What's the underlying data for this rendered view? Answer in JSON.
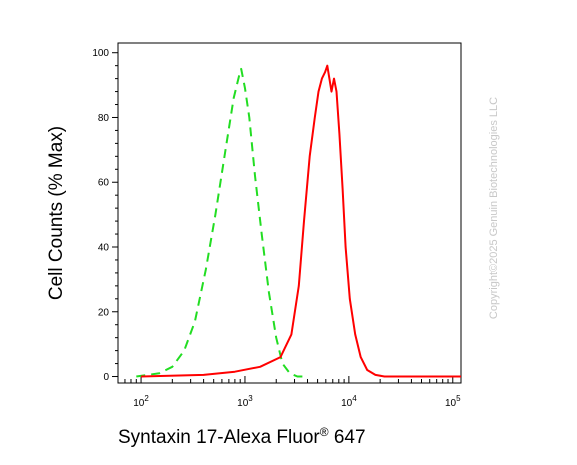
{
  "chart_data": {
    "type": "line",
    "title": "",
    "xlabel": "Syntaxin 17-Alexa Fluor® 647",
    "xlabel_parts": {
      "main": "Syntaxin 17-Alexa Fluor",
      "sup": "®",
      "tail": " 647"
    },
    "ylabel": "Cell Counts (% Max)",
    "xscale": "log",
    "xlim": [
      60,
      120000
    ],
    "ylim": [
      -2,
      103
    ],
    "x_ticks": [
      {
        "value": 100,
        "base": "10",
        "exp": "2"
      },
      {
        "value": 1000,
        "base": "10",
        "exp": "3"
      },
      {
        "value": 10000,
        "base": "10",
        "exp": "4"
      },
      {
        "value": 100000,
        "base": "10",
        "exp": "5"
      }
    ],
    "y_ticks": [
      {
        "value": 0,
        "label": "0"
      },
      {
        "value": 20,
        "label": "20"
      },
      {
        "value": 40,
        "label": "40"
      },
      {
        "value": 60,
        "label": "60"
      },
      {
        "value": 80,
        "label": "80"
      },
      {
        "value": 100,
        "label": "100"
      }
    ],
    "grid": false,
    "legend": "none",
    "series": [
      {
        "color": "#22dd22",
        "style": "dashed",
        "x": [
          90,
          150,
          200,
          260,
          330,
          420,
          520,
          650,
          780,
          880,
          920,
          1000,
          1100,
          1250,
          1450,
          1700,
          2000,
          2300,
          2700,
          3200,
          4000
        ],
        "y": [
          0,
          1,
          3,
          8,
          17,
          33,
          50,
          70,
          86,
          93,
          95,
          89,
          80,
          62,
          44,
          26,
          12,
          4,
          1,
          0,
          0
        ]
      },
      {
        "color": "#ff0000",
        "style": "solid",
        "x": [
          100,
          400,
          800,
          1400,
          2200,
          2800,
          3300,
          3700,
          4200,
          4700,
          5100,
          5500,
          5900,
          6200,
          6500,
          6800,
          7200,
          7600,
          8100,
          8700,
          9300,
          10200,
          11500,
          13000,
          15000,
          18000,
          22000,
          30000,
          60000,
          120000
        ],
        "y": [
          0,
          0.5,
          1.5,
          3,
          6,
          13,
          28,
          48,
          68,
          80,
          88,
          92,
          94,
          96,
          92,
          88,
          92,
          88,
          75,
          58,
          40,
          24,
          13,
          6,
          2,
          0.5,
          0,
          0,
          0,
          0
        ]
      }
    ]
  },
  "watermark": "Copyright©2025 Genuin Biotechnologies LLC"
}
